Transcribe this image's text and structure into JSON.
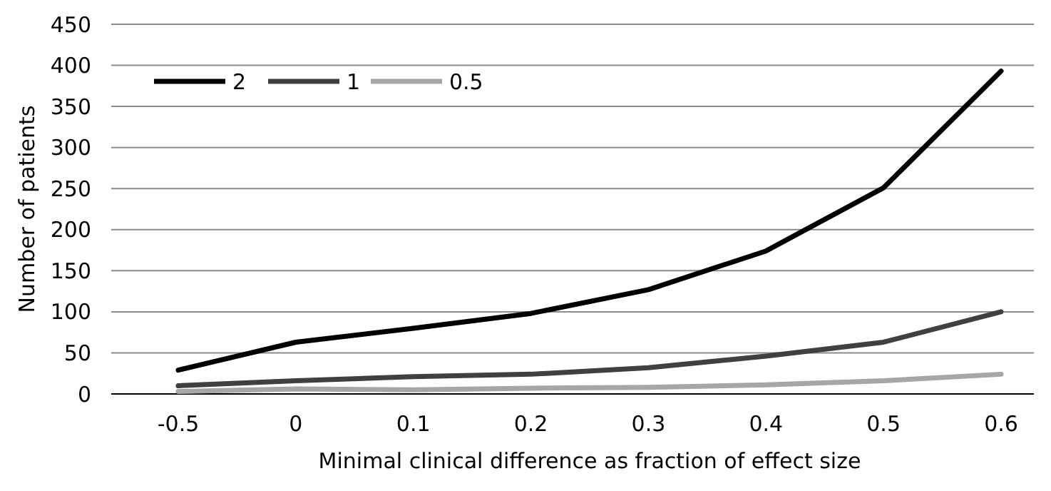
{
  "chart_data": {
    "type": "line",
    "xlabel": "Minimal clinical difference as fraction of effect size",
    "ylabel": "Number of patients",
    "categories": [
      "-0.5",
      "0",
      "0.1",
      "0.2",
      "0.3",
      "0.4",
      "0.5",
      "0.6"
    ],
    "series": [
      {
        "name": "2",
        "color": "#000000",
        "values": [
          29,
          63,
          80,
          98,
          127,
          174,
          251,
          393
        ]
      },
      {
        "name": "1",
        "color": "#404040",
        "values": [
          10,
          16,
          21,
          24,
          32,
          46,
          63,
          100
        ]
      },
      {
        "name": "0.5",
        "color": "#a6a6a6",
        "values": [
          3,
          6,
          5,
          7,
          8,
          11,
          16,
          24
        ]
      }
    ],
    "ylim": [
      0,
      450
    ],
    "yticks": [
      0,
      50,
      100,
      150,
      200,
      250,
      300,
      350,
      400,
      450
    ],
    "grid": "y",
    "legend": "top left",
    "marker": "none",
    "line_style": "solid"
  }
}
